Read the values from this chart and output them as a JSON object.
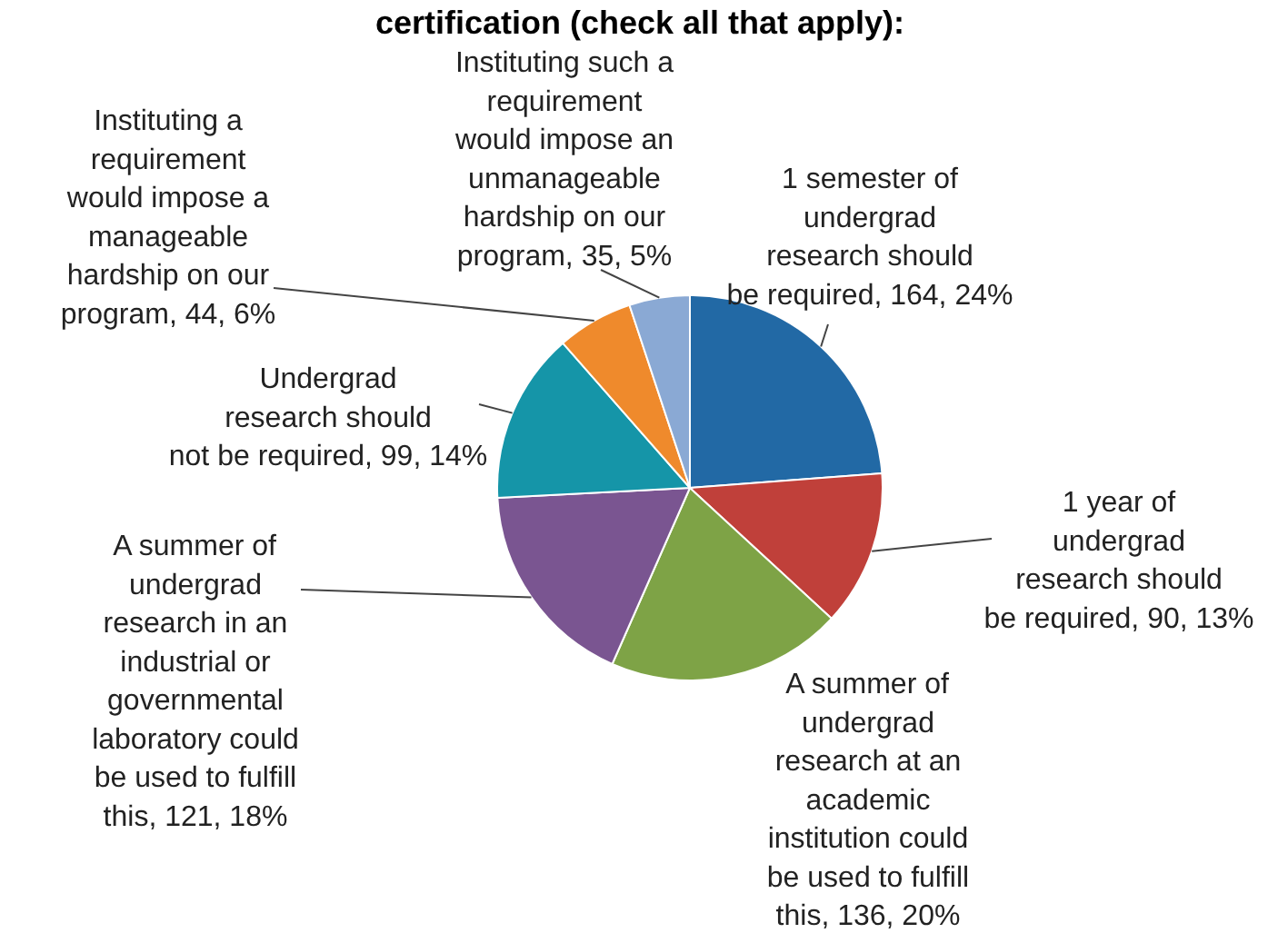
{
  "chart_data": {
    "type": "pie",
    "title": "certification (check all that apply):",
    "categories": [
      "1 semester of\nundergrad\nresearch should\nbe required",
      "1 year of\nundergrad\nresearch should\nbe required",
      "A summer of\nundergrad\nresearch at an\nacademic\ninstitution could\nbe used to fulfill\nthis",
      "A summer of\nundergrad\nresearch in an\nindustrial or\ngovernmental\nlaboratory could\nbe used to fulfill\nthis",
      "Undergrad\nresearch should\nnot be required",
      "Instituting a\nrequirement\nwould impose a\nmanageable\nhardship on our\nprogram",
      "Instituting such a\nrequirement\nwould impose an\nunmanageable\nhardship on our\nprogram"
    ],
    "values": [
      164,
      90,
      136,
      121,
      99,
      44,
      35
    ],
    "value_labels": [
      "164, 24%",
      "90, 13%",
      "136, 20%",
      "121, 18%",
      "99, 14%",
      "44, 6%",
      "35, 5%"
    ],
    "colors": [
      "#2269a5",
      "#c0403a",
      "#7ea346",
      "#7a5591",
      "#1595a8",
      "#ef8a2c",
      "#8aa9d4"
    ]
  }
}
